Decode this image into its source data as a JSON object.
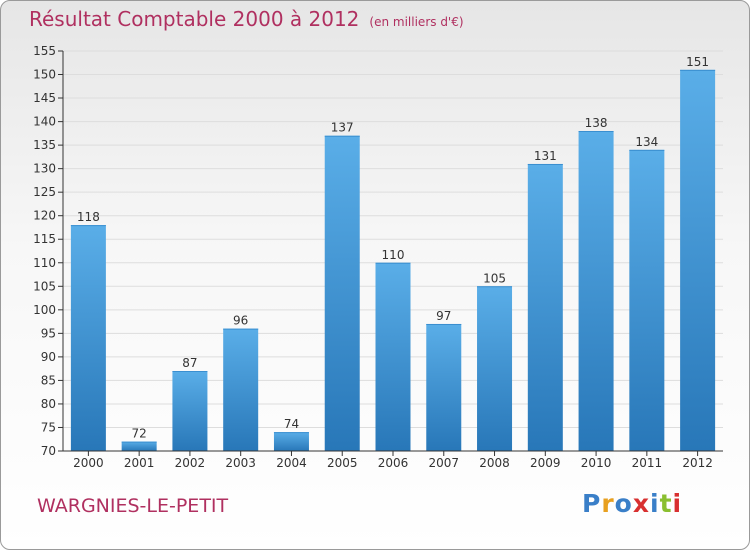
{
  "header": {
    "title": "Résultat Comptable 2000 à 2012",
    "unit": "(en milliers d'€)"
  },
  "footer": {
    "city": "WARGNIES-LE-PETIT",
    "logo": {
      "letters": [
        "P",
        "r",
        "o",
        "x",
        "i",
        "t",
        "i"
      ],
      "colors": [
        "#3a7fc8",
        "#e8a020",
        "#3a7fc8",
        "#d83030",
        "#3a7fc8",
        "#8abf30",
        "#d83030"
      ]
    }
  },
  "colors": {
    "bar_top": "#5aaee8",
    "bar_bottom": "#2877b8",
    "grid": "#dddddd",
    "axis": "#333333"
  },
  "chart_data": {
    "type": "bar",
    "title": "Résultat Comptable 2000 à 2012",
    "categories": [
      "2000",
      "2001",
      "2002",
      "2003",
      "2004",
      "2005",
      "2006",
      "2007",
      "2008",
      "2009",
      "2010",
      "2011",
      "2012"
    ],
    "values": [
      118,
      72,
      87,
      96,
      74,
      137,
      110,
      97,
      105,
      131,
      138,
      134,
      151
    ],
    "data_labels": [
      "118",
      "72",
      "87",
      "96",
      "74",
      "137",
      "110",
      "97",
      "105",
      "131",
      "138",
      "134",
      "151"
    ],
    "ylim": [
      70,
      155
    ],
    "yticks": [
      70,
      75,
      80,
      85,
      90,
      95,
      100,
      105,
      110,
      115,
      120,
      125,
      130,
      135,
      140,
      145,
      150,
      155
    ],
    "ytick_labels": [
      "70",
      "75",
      "80",
      "85",
      "90",
      "95",
      "100",
      "105",
      "110",
      "115",
      "120",
      "125",
      "130",
      "135",
      "140",
      "145",
      "150",
      "155"
    ],
    "grid": true,
    "legend": "none"
  }
}
